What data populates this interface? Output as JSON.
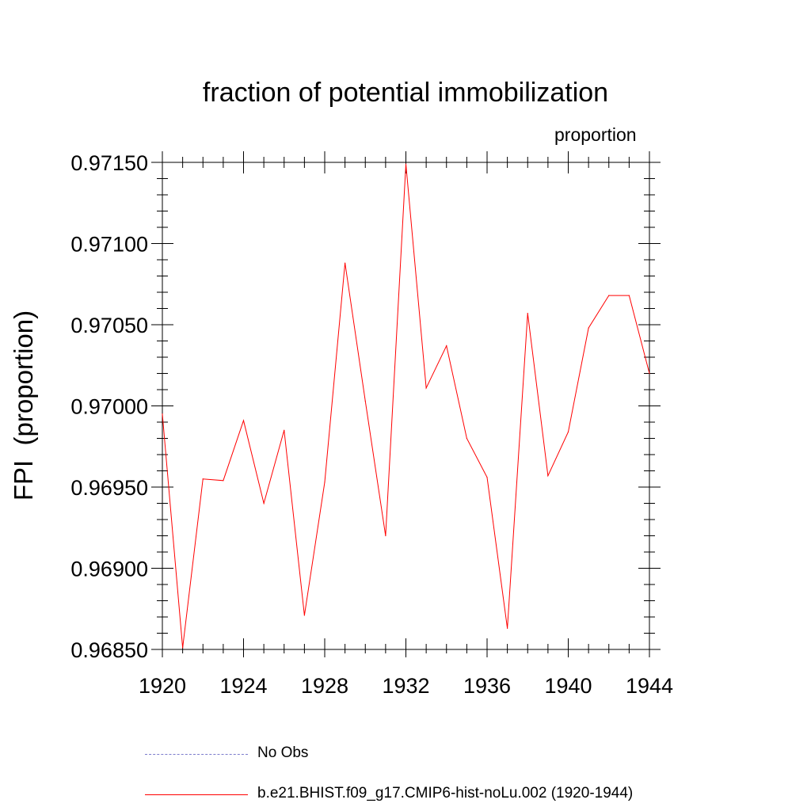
{
  "chart_data": {
    "type": "line",
    "title": "fraction of potential immobilization",
    "units_label": "proportion",
    "ylabel": "FPI  (proportion)",
    "xlabel": "",
    "xlim": [
      1920,
      1944
    ],
    "ylim": [
      0.9685,
      0.9715
    ],
    "x_ticks": [
      "1920",
      "1924",
      "1928",
      "1932",
      "1936",
      "1940",
      "1944"
    ],
    "y_ticks": [
      "0.96850",
      "0.96900",
      "0.96950",
      "0.97000",
      "0.97050",
      "0.97100",
      "0.97150"
    ],
    "x": [
      1920,
      1921,
      1922,
      1923,
      1924,
      1925,
      1926,
      1927,
      1928,
      1929,
      1930,
      1931,
      1932,
      1933,
      1934,
      1935,
      1936,
      1937,
      1938,
      1939,
      1940,
      1941,
      1942,
      1943,
      1944
    ],
    "series": [
      {
        "name": "b.e21.BHIST.f09_g17.CMIP6-hist-noLu.002 (1920-1944)",
        "color": "#ff0000",
        "values": [
          0.96995,
          0.96851,
          0.96955,
          0.96954,
          0.96991,
          0.9694,
          0.96985,
          0.96871,
          0.96953,
          0.97088,
          0.97003,
          0.9692,
          0.97149,
          0.97011,
          0.97037,
          0.9698,
          0.96956,
          0.96863,
          0.97057,
          0.96957,
          0.96984,
          0.97048,
          0.97068,
          0.97068,
          0.9702
        ]
      }
    ],
    "legend": [
      {
        "label": "No Obs",
        "color": "#7d7dcc",
        "style": "dashed"
      },
      {
        "label": "b.e21.BHIST.f09_g17.CMIP6-hist-noLu.002 (1920-1944)",
        "color": "#ff0000",
        "style": "solid"
      }
    ],
    "grid": false,
    "legend_position": "bottom"
  }
}
